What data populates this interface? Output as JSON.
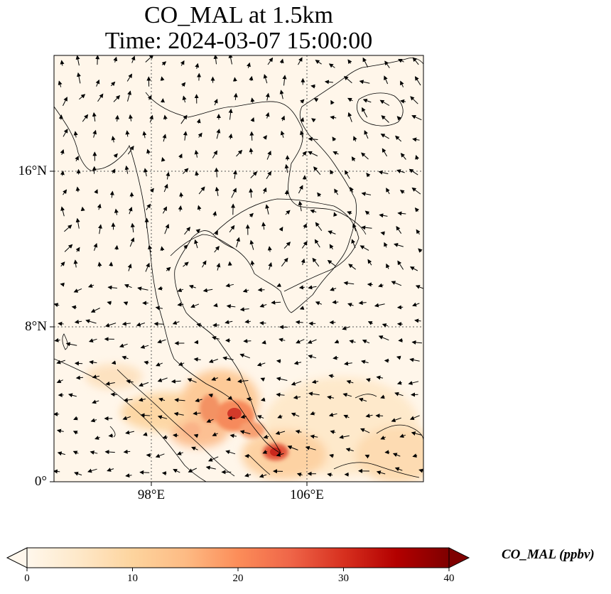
{
  "title_line1": "CO_MAL at 1.5km",
  "title_line2": "Time: 2024-03-07 15:00:00",
  "map": {
    "lon_range": [
      93,
      112
    ],
    "lat_range": [
      0,
      22
    ],
    "lat_ticks": [
      {
        "value": 0,
        "label": "0°"
      },
      {
        "value": 8,
        "label": "8°N"
      },
      {
        "value": 16,
        "label": "16°N"
      }
    ],
    "lon_ticks": [
      {
        "value": 98,
        "label": "98°E"
      },
      {
        "value": 106,
        "label": "106°E"
      }
    ],
    "gridlines": "dotted",
    "field": "CO_MAL",
    "overlay": "wind vectors"
  },
  "colorbar": {
    "label": "CO_MAL (ppbv)",
    "min": 0,
    "max": 40,
    "ticks": [
      "0",
      "10",
      "20",
      "30",
      "40"
    ],
    "extend": "both",
    "colormap": [
      "#fff7ec",
      "#fee8c8",
      "#fdd49e",
      "#fdbb84",
      "#fc8d59",
      "#ef6548",
      "#d7301f",
      "#b30000",
      "#7f0000"
    ]
  }
}
